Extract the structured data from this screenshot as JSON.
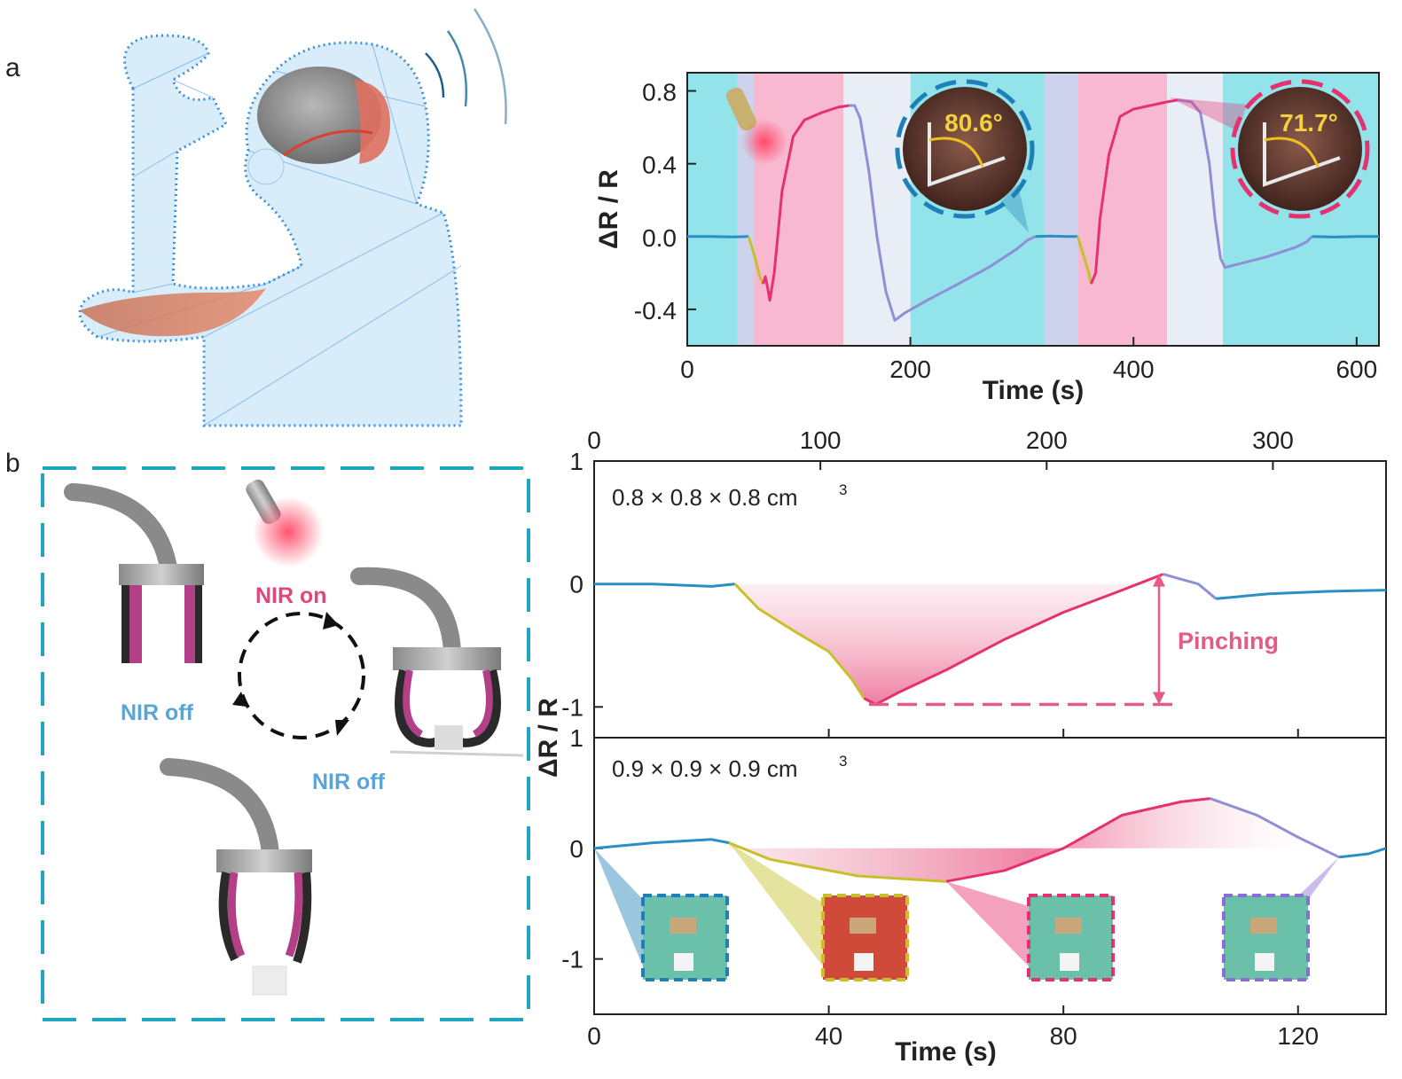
{
  "panel_labels": {
    "a": "a",
    "b": "b"
  },
  "colors": {
    "blue_trace": "#2a8fc4",
    "yellow_trace": "#c8c02a",
    "pink_trace": "#e6316f",
    "purple_trace": "#8f8fd6",
    "cyan_bg": "#6fd9e4",
    "pink_bg": "#f5a0c0",
    "pinching": "#e45c86",
    "dash_box": "#1fa7c0",
    "nir_on": "#e0467c",
    "nir_off": "#5aa4d6"
  },
  "illustration_b": {
    "nir_on": "NIR on",
    "nir_off_left": "NIR off",
    "nir_off_bottom": "NIR off"
  },
  "insets_a": {
    "angle_1": "80.6°",
    "angle_2": "71.7°"
  },
  "annotations_b": {
    "pinching": "Pinching"
  },
  "chart_data": [
    {
      "type": "line",
      "panel": "a",
      "xlabel": "Time (s)",
      "ylabel": "ΔR / R",
      "xlim": [
        0,
        620
      ],
      "ylim": [
        -0.6,
        0.9
      ],
      "xticks": [
        0,
        200,
        400,
        600
      ],
      "yticks": [
        -0.4,
        0.0,
        0.4,
        0.8
      ],
      "ytick_labels": [
        "-0.4",
        "0.0",
        "0.4",
        "0.8"
      ],
      "background_bands": [
        {
          "x": [
            0,
            45
          ],
          "color": "cyan"
        },
        {
          "x": [
            60,
            140
          ],
          "color": "pink"
        },
        {
          "x": [
            200,
            320
          ],
          "color": "cyan"
        },
        {
          "x": [
            350,
            430
          ],
          "color": "pink"
        },
        {
          "x": [
            480,
            620
          ],
          "color": "cyan"
        }
      ],
      "series": [
        {
          "color_key": "blue_trace",
          "points": [
            [
              0,
              0.0
            ],
            [
              20,
              0.0
            ],
            [
              40,
              -0.002
            ],
            [
              55,
              0.0
            ]
          ]
        },
        {
          "color_key": "yellow_trace",
          "points": [
            [
              55,
              0.0
            ],
            [
              60,
              -0.1
            ],
            [
              65,
              -0.22
            ],
            [
              68,
              -0.26
            ]
          ]
        },
        {
          "color_key": "pink_trace",
          "points": [
            [
              68,
              -0.26
            ],
            [
              70,
              -0.22
            ],
            [
              72,
              -0.28
            ],
            [
              74,
              -0.35
            ],
            [
              78,
              -0.2
            ],
            [
              85,
              0.25
            ],
            [
              95,
              0.55
            ],
            [
              105,
              0.64
            ],
            [
              120,
              0.68
            ],
            [
              135,
              0.71
            ],
            [
              145,
              0.72
            ]
          ]
        },
        {
          "color_key": "purple_trace",
          "points": [
            [
              145,
              0.72
            ],
            [
              150,
              0.72
            ],
            [
              155,
              0.65
            ],
            [
              163,
              0.35
            ],
            [
              170,
              0.0
            ],
            [
              178,
              -0.3
            ],
            [
              186,
              -0.46
            ],
            [
              195,
              -0.42
            ],
            [
              215,
              -0.35
            ],
            [
              240,
              -0.27
            ],
            [
              270,
              -0.17
            ],
            [
              295,
              -0.07
            ],
            [
              305,
              -0.02
            ],
            [
              312,
              0.0
            ]
          ]
        },
        {
          "color_key": "blue_trace",
          "points": [
            [
              312,
              0.0
            ],
            [
              325,
              0.003
            ],
            [
              340,
              0.0
            ],
            [
              350,
              0.0
            ]
          ]
        },
        {
          "color_key": "yellow_trace",
          "points": [
            [
              350,
              0.0
            ],
            [
              355,
              -0.1
            ],
            [
              360,
              -0.2
            ],
            [
              362,
              -0.26
            ]
          ]
        },
        {
          "color_key": "pink_trace",
          "points": [
            [
              362,
              -0.26
            ],
            [
              366,
              -0.2
            ],
            [
              370,
              0.1
            ],
            [
              378,
              0.45
            ],
            [
              388,
              0.66
            ],
            [
              400,
              0.7
            ],
            [
              415,
              0.72
            ],
            [
              430,
              0.74
            ],
            [
              440,
              0.75
            ]
          ]
        },
        {
          "color_key": "purple_trace",
          "points": [
            [
              440,
              0.75
            ],
            [
              452,
              0.74
            ],
            [
              460,
              0.68
            ],
            [
              468,
              0.4
            ],
            [
              473,
              0.1
            ],
            [
              478,
              -0.12
            ],
            [
              482,
              -0.17
            ],
            [
              495,
              -0.15
            ],
            [
              520,
              -0.11
            ],
            [
              545,
              -0.06
            ],
            [
              555,
              -0.03
            ],
            [
              560,
              0.0
            ]
          ]
        },
        {
          "color_key": "blue_trace",
          "points": [
            [
              560,
              0.0
            ],
            [
              580,
              -0.003
            ],
            [
              600,
              0.0
            ],
            [
              620,
              0.0
            ]
          ]
        }
      ]
    },
    {
      "type": "line",
      "panel": "b-top",
      "note": "0.8 × 0.8 × 0.8 cm",
      "note_superscript": "3",
      "xlim": [
        0,
        135
      ],
      "ylim": [
        -1.25,
        1.0
      ],
      "top_axis_ticks": [
        0,
        100,
        200,
        300
      ],
      "yticks": [
        -1,
        0,
        1
      ],
      "series": [
        {
          "color_key": "blue_trace",
          "points": [
            [
              0,
              0.0
            ],
            [
              10,
              0.0
            ],
            [
              20,
              -0.02
            ],
            [
              24,
              0.0
            ]
          ]
        },
        {
          "color_key": "yellow_trace",
          "points": [
            [
              24,
              0.0
            ],
            [
              28,
              -0.2
            ],
            [
              34,
              -0.38
            ],
            [
              40,
              -0.55
            ],
            [
              44,
              -0.78
            ],
            [
              46,
              -0.93
            ]
          ]
        },
        {
          "color_key": "pink_trace",
          "points": [
            [
              46,
              -0.93
            ],
            [
              48,
              -0.98
            ],
            [
              52,
              -0.88
            ],
            [
              60,
              -0.7
            ],
            [
              70,
              -0.45
            ],
            [
              80,
              -0.23
            ],
            [
              90,
              -0.05
            ],
            [
              97,
              0.08
            ]
          ]
        },
        {
          "color_key": "purple_trace",
          "points": [
            [
              97,
              0.08
            ],
            [
              103,
              0.0
            ],
            [
              106,
              -0.12
            ]
          ]
        },
        {
          "color_key": "blue_trace",
          "points": [
            [
              106,
              -0.12
            ],
            [
              115,
              -0.08
            ],
            [
              125,
              -0.06
            ],
            [
              135,
              -0.05
            ]
          ]
        }
      ],
      "pinching_range": [
        -0.98,
        0.08
      ]
    },
    {
      "type": "line",
      "panel": "b-bottom",
      "note": "0.9 × 0.9 × 0.9 cm",
      "note_superscript": "3",
      "xlabel": "Time (s)",
      "ylabel": "ΔR / R",
      "xlim": [
        0,
        135
      ],
      "ylim": [
        -1.5,
        1.0
      ],
      "xticks": [
        0,
        40,
        80,
        120
      ],
      "yticks": [
        -1,
        0,
        1
      ],
      "series": [
        {
          "color_key": "blue_trace",
          "points": [
            [
              0,
              0.0
            ],
            [
              10,
              0.05
            ],
            [
              20,
              0.08
            ],
            [
              23,
              0.05
            ]
          ]
        },
        {
          "color_key": "yellow_trace",
          "points": [
            [
              23,
              0.05
            ],
            [
              30,
              -0.1
            ],
            [
              45,
              -0.25
            ],
            [
              60,
              -0.3
            ]
          ]
        },
        {
          "color_key": "pink_trace",
          "points": [
            [
              60,
              -0.3
            ],
            [
              70,
              -0.2
            ],
            [
              80,
              0.0
            ],
            [
              90,
              0.3
            ],
            [
              100,
              0.42
            ],
            [
              105,
              0.45
            ]
          ]
        },
        {
          "color_key": "purple_trace",
          "points": [
            [
              105,
              0.45
            ],
            [
              113,
              0.3
            ],
            [
              120,
              0.1
            ],
            [
              127,
              -0.08
            ]
          ]
        },
        {
          "color_key": "blue_trace",
          "points": [
            [
              127,
              -0.08
            ],
            [
              132,
              -0.05
            ],
            [
              135,
              0.0
            ]
          ]
        }
      ]
    }
  ]
}
